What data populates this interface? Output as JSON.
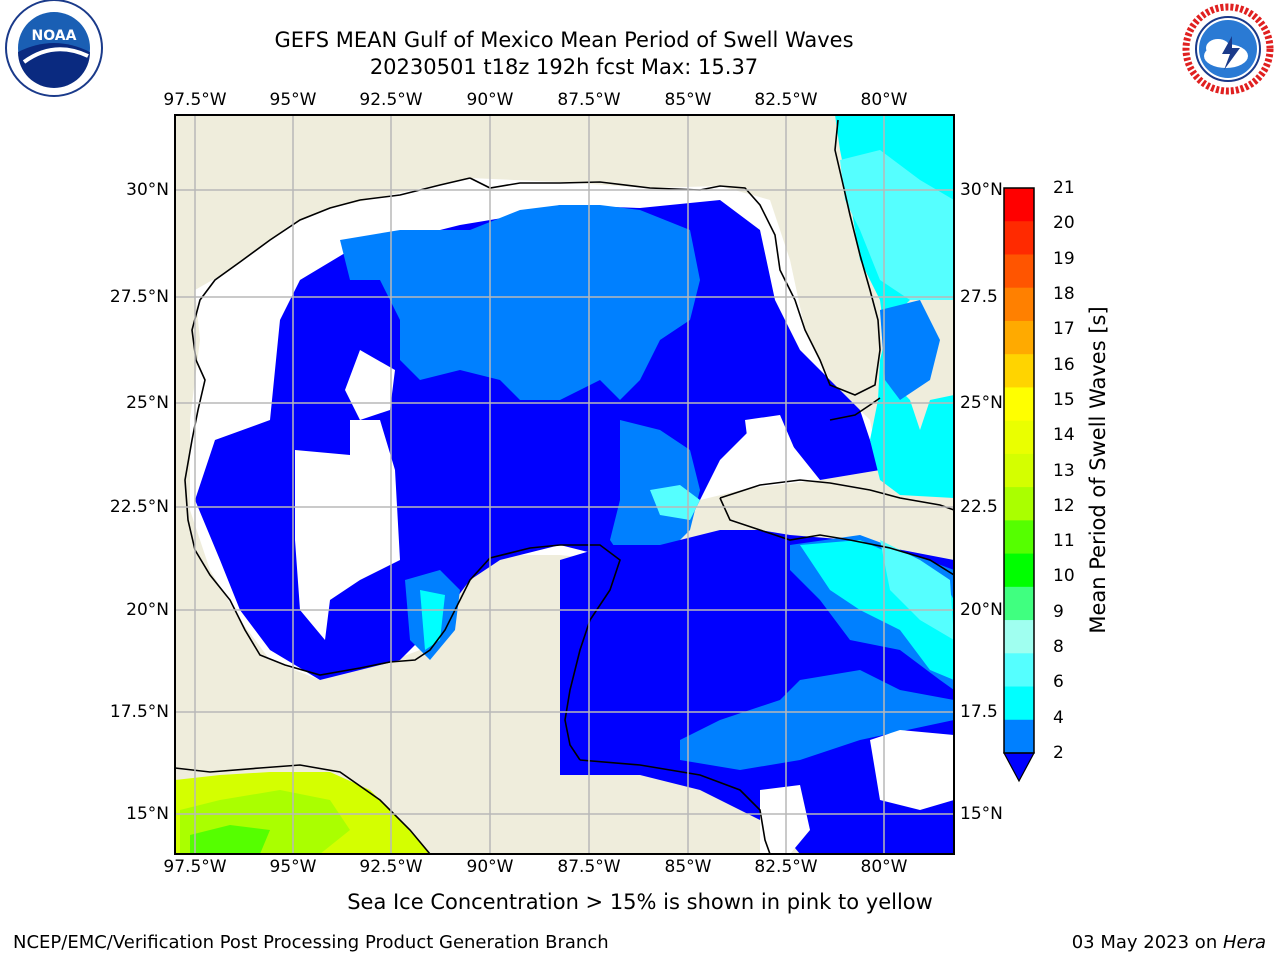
{
  "header": {
    "title_line1": "GEFS MEAN Gulf of Mexico Mean Period of Swell Waves",
    "title_line2": "20230501 t18z 192h fcst   Max: 15.37"
  },
  "logos": {
    "left": "NOAA",
    "right": "NATIONAL WEATHER SERVICE"
  },
  "map": {
    "lon_labels": [
      "97.5°W",
      "95°W",
      "92.5°W",
      "90°W",
      "87.5°W",
      "85°W",
      "82.5°W",
      "80°W"
    ],
    "lat_labels_left": [
      "30°N",
      "27.5°N",
      "25°N",
      "22.5°N",
      "20°N",
      "17.5°N",
      "15°N"
    ],
    "lat_labels_right": [
      "30°N",
      "27.5",
      "25°N",
      "22.5",
      "20°N",
      "17.5",
      "15°N"
    ]
  },
  "colorbar": {
    "label": "Mean Period of Swell Waves [s]",
    "ticks": [
      "21",
      "20",
      "19",
      "18",
      "17",
      "16",
      "15",
      "14",
      "13",
      "12",
      "11",
      "10",
      "9",
      "8",
      "6",
      "4",
      "2"
    ],
    "colors": [
      "#ff0000",
      "#ff2a00",
      "#ff5500",
      "#ff8000",
      "#ffaa00",
      "#ffd400",
      "#ffff00",
      "#eaff00",
      "#d4ff00",
      "#aaff00",
      "#55ff00",
      "#00ff00",
      "#40ff80",
      "#a0fff0",
      "#55ffff",
      "#00ffff",
      "#0080ff"
    ],
    "extend_color": "#0000ff"
  },
  "note": "Sea Ice Concentration > 15% is shown in pink to yellow",
  "footer": {
    "left": "NCEP/EMC/Verification Post Processing Product Generation Branch",
    "date": "03 May 2023 on ",
    "machine": "Hera"
  }
}
